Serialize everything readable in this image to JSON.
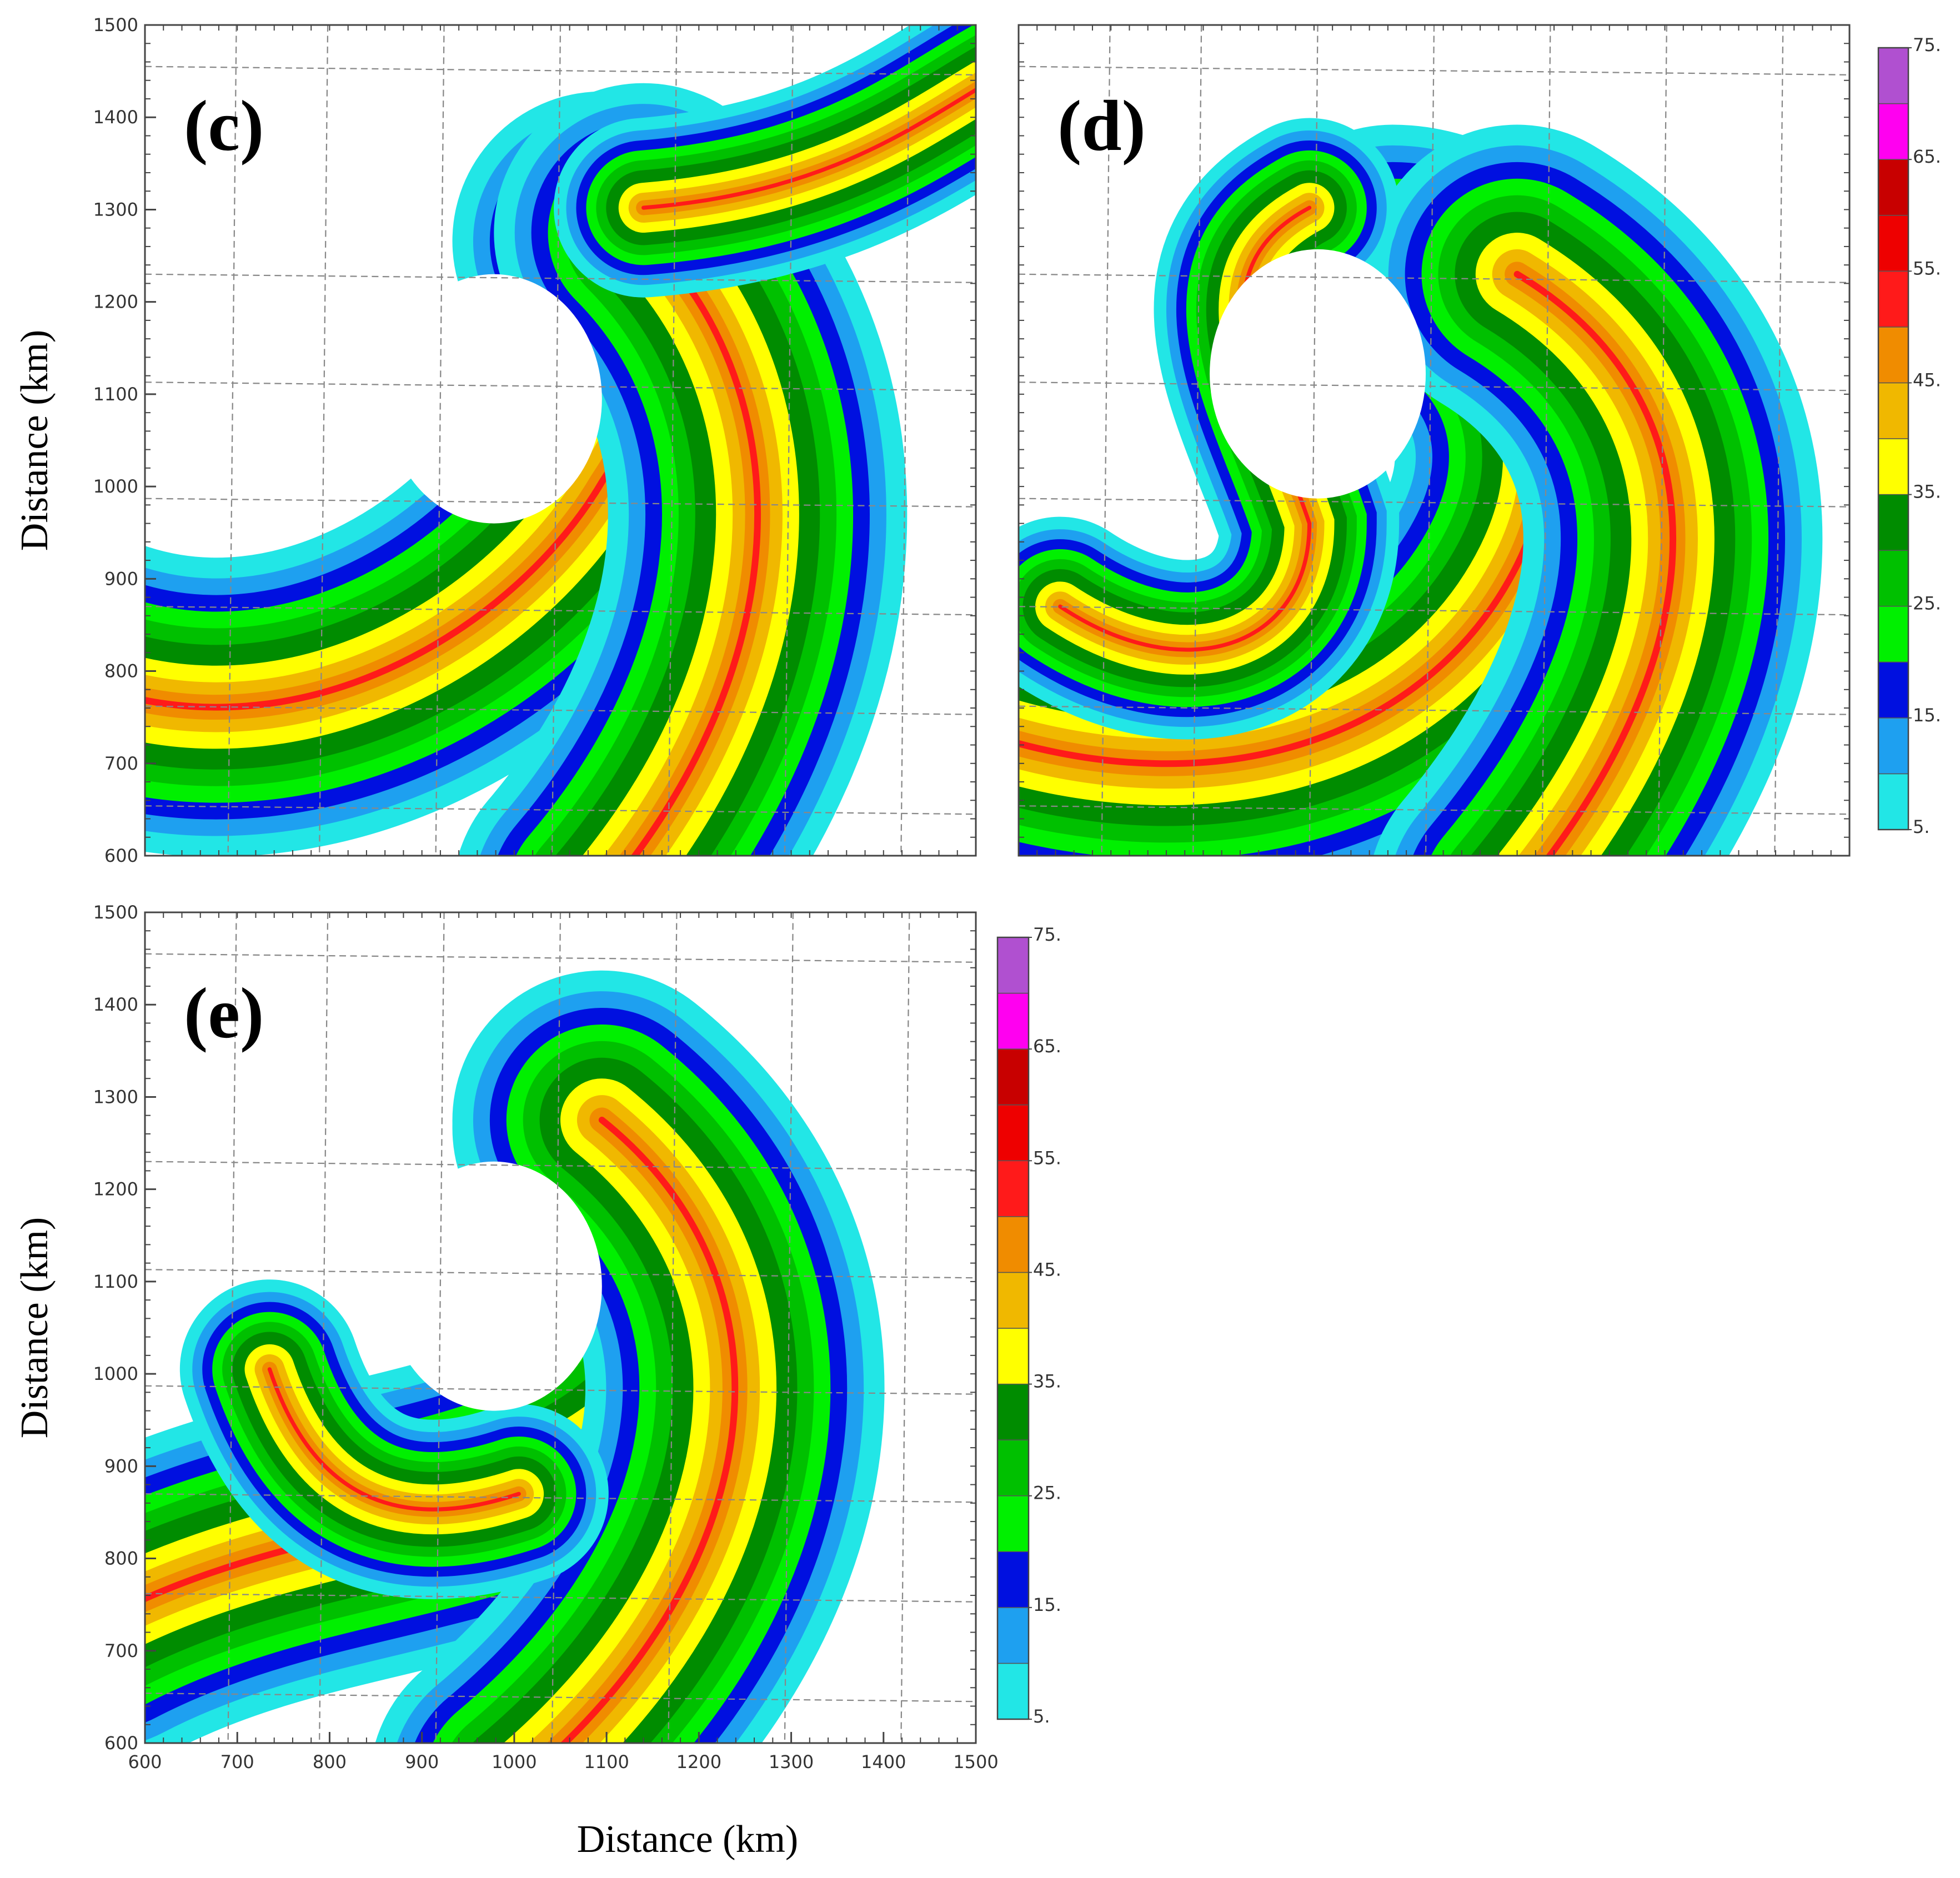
{
  "chart_data": [
    {
      "type": "contour",
      "panel_label": "(c)",
      "y_label": "Distance (km)",
      "xlim": [
        600,
        1500
      ],
      "ylim": [
        600,
        1500
      ],
      "yticks": [
        600,
        700,
        800,
        900,
        1000,
        1100,
        1200,
        1300,
        1400,
        1500
      ]
    },
    {
      "type": "contour",
      "panel_label": "(d)",
      "xlim": [
        600,
        1500
      ],
      "ylim": [
        600,
        1500
      ],
      "colorbar": {
        "levels": [
          5,
          10,
          15,
          20,
          25,
          30,
          35,
          40,
          45,
          50,
          55,
          60,
          65,
          70,
          75
        ],
        "colors": [
          "#22e6e6",
          "#1ea0f0",
          "#0010e0",
          "#00f000",
          "#00c000",
          "#008c00",
          "#ffff00",
          "#f0b800",
          "#f08c00",
          "#ff1a1a",
          "#ee0000",
          "#c80000",
          "#ff00f0",
          "#b050d0"
        ],
        "ticks": [
          {
            "value": 5,
            "label": "5."
          },
          {
            "value": 15,
            "label": "15."
          },
          {
            "value": 25,
            "label": "25."
          },
          {
            "value": 35,
            "label": "35."
          },
          {
            "value": 45,
            "label": "45."
          },
          {
            "value": 55,
            "label": "55."
          },
          {
            "value": 65,
            "label": "65."
          },
          {
            "value": 75,
            "label": "75."
          }
        ]
      }
    },
    {
      "type": "contour",
      "panel_label": "(e)",
      "x_label": "Distance (km)",
      "y_label": "Distance (km)",
      "xlim": [
        600,
        1500
      ],
      "ylim": [
        600,
        1500
      ],
      "xticks": [
        600,
        700,
        800,
        900,
        1000,
        1100,
        1200,
        1300,
        1400,
        1500
      ],
      "yticks": [
        600,
        700,
        800,
        900,
        1000,
        1100,
        1200,
        1300,
        1400,
        1500
      ],
      "colorbar": {
        "levels": [
          5,
          10,
          15,
          20,
          25,
          30,
          35,
          40,
          45,
          50,
          55,
          60,
          65,
          70,
          75
        ],
        "colors": [
          "#22e6e6",
          "#1ea0f0",
          "#0010e0",
          "#00f000",
          "#00c000",
          "#008c00",
          "#ffff00",
          "#f0b800",
          "#f08c00",
          "#ff1a1a",
          "#ee0000",
          "#c80000",
          "#ff00f0",
          "#b050d0"
        ],
        "ticks": [
          {
            "value": 5,
            "label": "5."
          },
          {
            "value": 15,
            "label": "15."
          },
          {
            "value": 25,
            "label": "25."
          },
          {
            "value": 35,
            "label": "35."
          },
          {
            "value": 45,
            "label": "45."
          },
          {
            "value": 55,
            "label": "55."
          },
          {
            "value": 65,
            "label": "65."
          },
          {
            "value": 75,
            "label": "75."
          }
        ]
      }
    }
  ]
}
